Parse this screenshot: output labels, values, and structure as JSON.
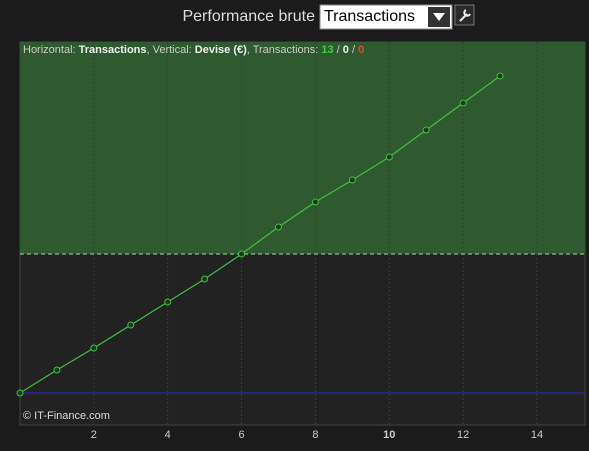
{
  "header": {
    "title": "Performance brute",
    "select": "Transactions"
  },
  "chart_data": {
    "type": "line",
    "info": {
      "h_label": "Horizontal: ",
      "h_value": "Transactions",
      "v_label": ", Vertical: ",
      "v_value": "Devise (€)",
      "t_label": ", Transactions: ",
      "wins": 13,
      "sep1": " / ",
      "even": 0,
      "sep2": " / ",
      "losses": 0
    },
    "x": [
      0,
      1,
      2,
      3,
      4,
      5,
      6,
      7,
      8,
      9,
      10,
      11,
      12,
      13
    ],
    "series": [
      {
        "name": "Transactions",
        "color": "#3fbf3f",
        "values": [
          0,
          23,
          45,
          68,
          91,
          114,
          139,
          166,
          191,
          213,
          236,
          263,
          290,
          317
        ]
      }
    ],
    "xlim": [
      0,
      15.3
    ],
    "ylim": [
      -32,
      351
    ],
    "xticks": [
      2,
      4,
      6,
      8,
      10,
      12,
      14
    ],
    "highlight_xtick": 10,
    "reference_line": 139,
    "baseline": 0,
    "baseline_color": "#2a2ad0",
    "region_color": "#2f5a2f",
    "grid": true,
    "credit": "© IT-Finance.com"
  }
}
